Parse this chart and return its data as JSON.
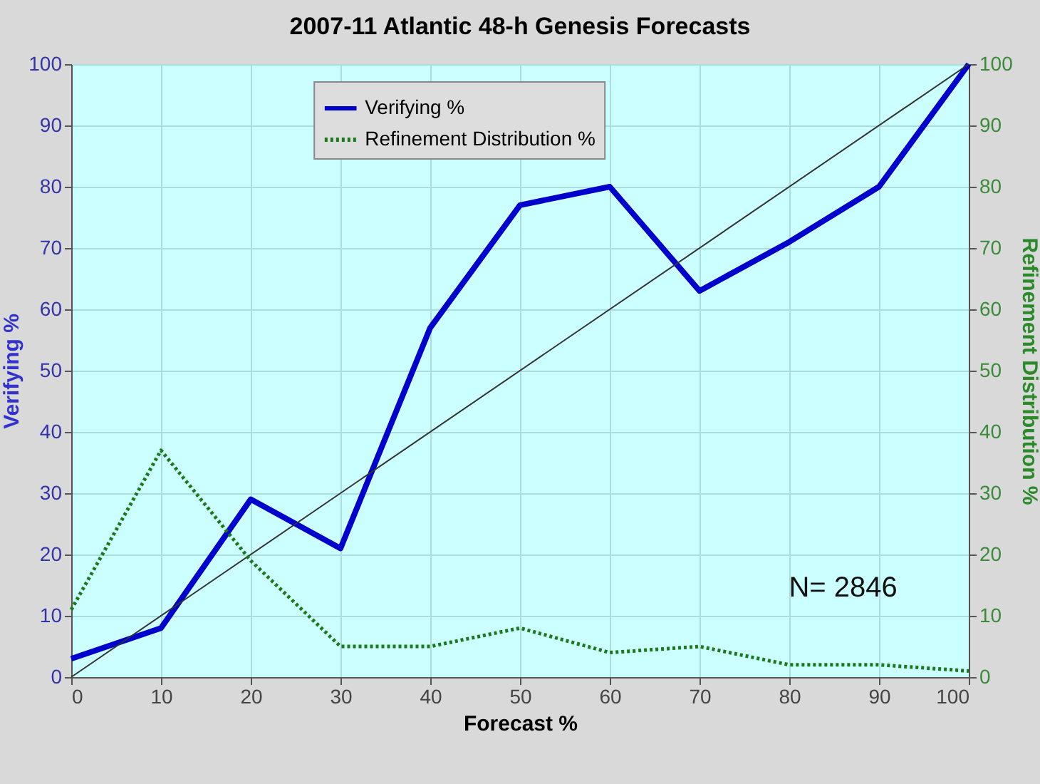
{
  "chart_data": {
    "type": "line",
    "title": "2007-11 Atlantic 48-h Genesis Forecasts",
    "xlabel": "Forecast %",
    "ylabel": "Verifying %",
    "y2label": "Refinement Distribution %",
    "annotations": [
      "N= 2846"
    ],
    "x": [
      0,
      10,
      20,
      30,
      40,
      50,
      60,
      70,
      80,
      90,
      100
    ],
    "series": [
      {
        "name": "Verifying %",
        "color": "#0000cc",
        "values": [
          3,
          8,
          29,
          21,
          57,
          77,
          80,
          63,
          71,
          80,
          100
        ]
      },
      {
        "name": "Refinement Distribution %",
        "color": "#1a7a1a",
        "axis": "y2",
        "line_style": "dotted",
        "values": [
          11,
          37,
          19,
          5,
          5,
          8,
          4,
          5,
          2,
          2,
          1
        ]
      },
      {
        "type": "line",
        "color": "#333333",
        "x": [
          0,
          100
        ],
        "values": [
          0,
          100
        ]
      }
    ],
    "xlim": [
      0,
      100
    ],
    "xticks": [
      0,
      10,
      20,
      30,
      40,
      50,
      60,
      70,
      80,
      90,
      100
    ],
    "ylim": [
      0,
      100
    ],
    "yticks": [
      0,
      10,
      20,
      30,
      40,
      50,
      60,
      70,
      80,
      90,
      100
    ],
    "y2lim": [
      0,
      100
    ],
    "y2ticks": [
      0,
      10,
      20,
      30,
      40,
      50,
      60,
      70,
      80,
      90,
      100
    ],
    "grid": true,
    "legend": "top"
  }
}
